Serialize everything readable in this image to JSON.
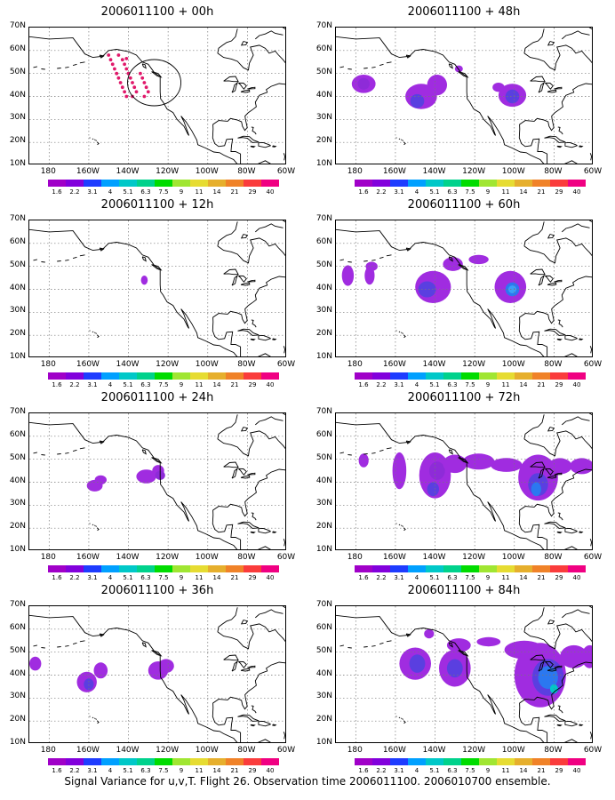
{
  "panels": [
    {
      "title": "2006011100 + 00h"
    },
    {
      "title": "2006011100 + 48h"
    },
    {
      "title": "2006011100 + 12h"
    },
    {
      "title": "2006011100 + 60h"
    },
    {
      "title": "2006011100 + 24h"
    },
    {
      "title": "2006011100 + 72h"
    },
    {
      "title": "2006011100 + 36h"
    },
    {
      "title": "2006011100 + 84h"
    }
  ],
  "lat_labels": [
    "70N",
    "60N",
    "50N",
    "40N",
    "30N",
    "20N",
    "10N"
  ],
  "lon_labels": [
    "180",
    "160W",
    "140W",
    "120W",
    "100W",
    "80W",
    "60W"
  ],
  "colorbar": {
    "labels": [
      "1.6",
      "2.2",
      "3.1",
      "4",
      "5.1",
      "6.3",
      "7.5",
      "9",
      "11",
      "14",
      "21",
      "29",
      "40"
    ],
    "colors": [
      "#a000c8",
      "#8200dc",
      "#1e3cff",
      "#00a0ff",
      "#00c8c8",
      "#00d28c",
      "#00dc00",
      "#a0e632",
      "#e6dc32",
      "#e6af2d",
      "#f08228",
      "#fa3c3c",
      "#f00082"
    ]
  },
  "caption": "Signal Variance for u,v,T. Flight 26. Observation time 2006011100. 2006010700 ensemble.",
  "colors": {
    "light_signal": "#a02ce0",
    "mid_signal": "#8e2bd8",
    "strong_signal": "#5a3fe0",
    "peak_signal": "#2b78f0",
    "observation_dots": "#e0186a"
  }
}
